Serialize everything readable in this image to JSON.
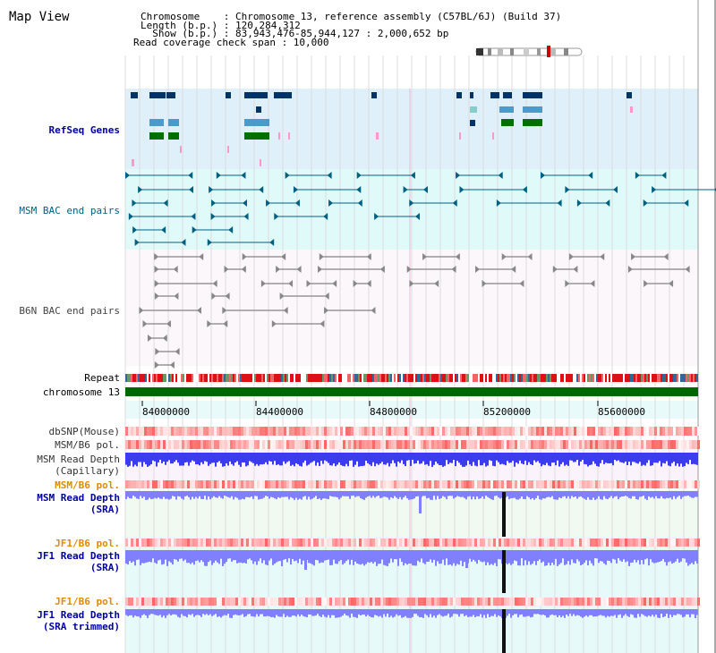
{
  "title": "Map View",
  "header": {
    "lines": [
      "Chromosome    : Chromosome 13, reference assembly (C57BL/6J) (Build 37)",
      "Length (b.p.) : 120,284,312",
      "  Show (b.p.) : 83,943,476-85,944,127 : 2,000,652 bp",
      "Read coverage check span : 10,000"
    ]
  },
  "axis": {
    "ticks": [
      "84000000",
      "84400000",
      "84800000",
      "85200000",
      "85600000"
    ]
  },
  "tracks": {
    "refseq": "RefSeq Genes",
    "msm_bac": "MSM BAC end pairs",
    "b6n_bac": "B6N BAC end pairs",
    "repeat": "Repeat",
    "chromosome": "chromosome 13",
    "dbsnp": "dbSNP(Mouse)",
    "msm_pol1": "MSM/B6 pol.",
    "msm_depth_cap_1": "MSM Read Depth",
    "msm_depth_cap_2": "(Capillary)",
    "msm_pol2": "MSM/B6 pol.",
    "msm_depth_sra_1": "MSM Read Depth",
    "msm_depth_sra_2": "(SRA)",
    "jf1_pol1": "JF1/B6 pol.",
    "jf1_depth_sra_1": "JF1 Read Depth",
    "jf1_depth_sra_2": "(SRA)",
    "jf1_pol2": "JF1/B6 pol.",
    "jf1_depth_trim_1": "JF1 Read Depth",
    "jf1_depth_trim_2": "(SRA trimmed)"
  },
  "colors": {
    "navy": "#0000a0",
    "teal": "#006080",
    "orange": "#e08a00",
    "refseq_dark": "#003366",
    "refseq_light": "#4d9ac8",
    "refseq_green": "#007000",
    "refseq_pink": "#ff99cc",
    "refseq_bg": "#dff0fa",
    "msm_bac_bg": "#e0fafa",
    "b6n_bac_bg": "#fbf7fb",
    "chromosome_green": "#006600",
    "depth_blue": "#3b3bf0",
    "depth_violet": "#8080ff"
  }
}
